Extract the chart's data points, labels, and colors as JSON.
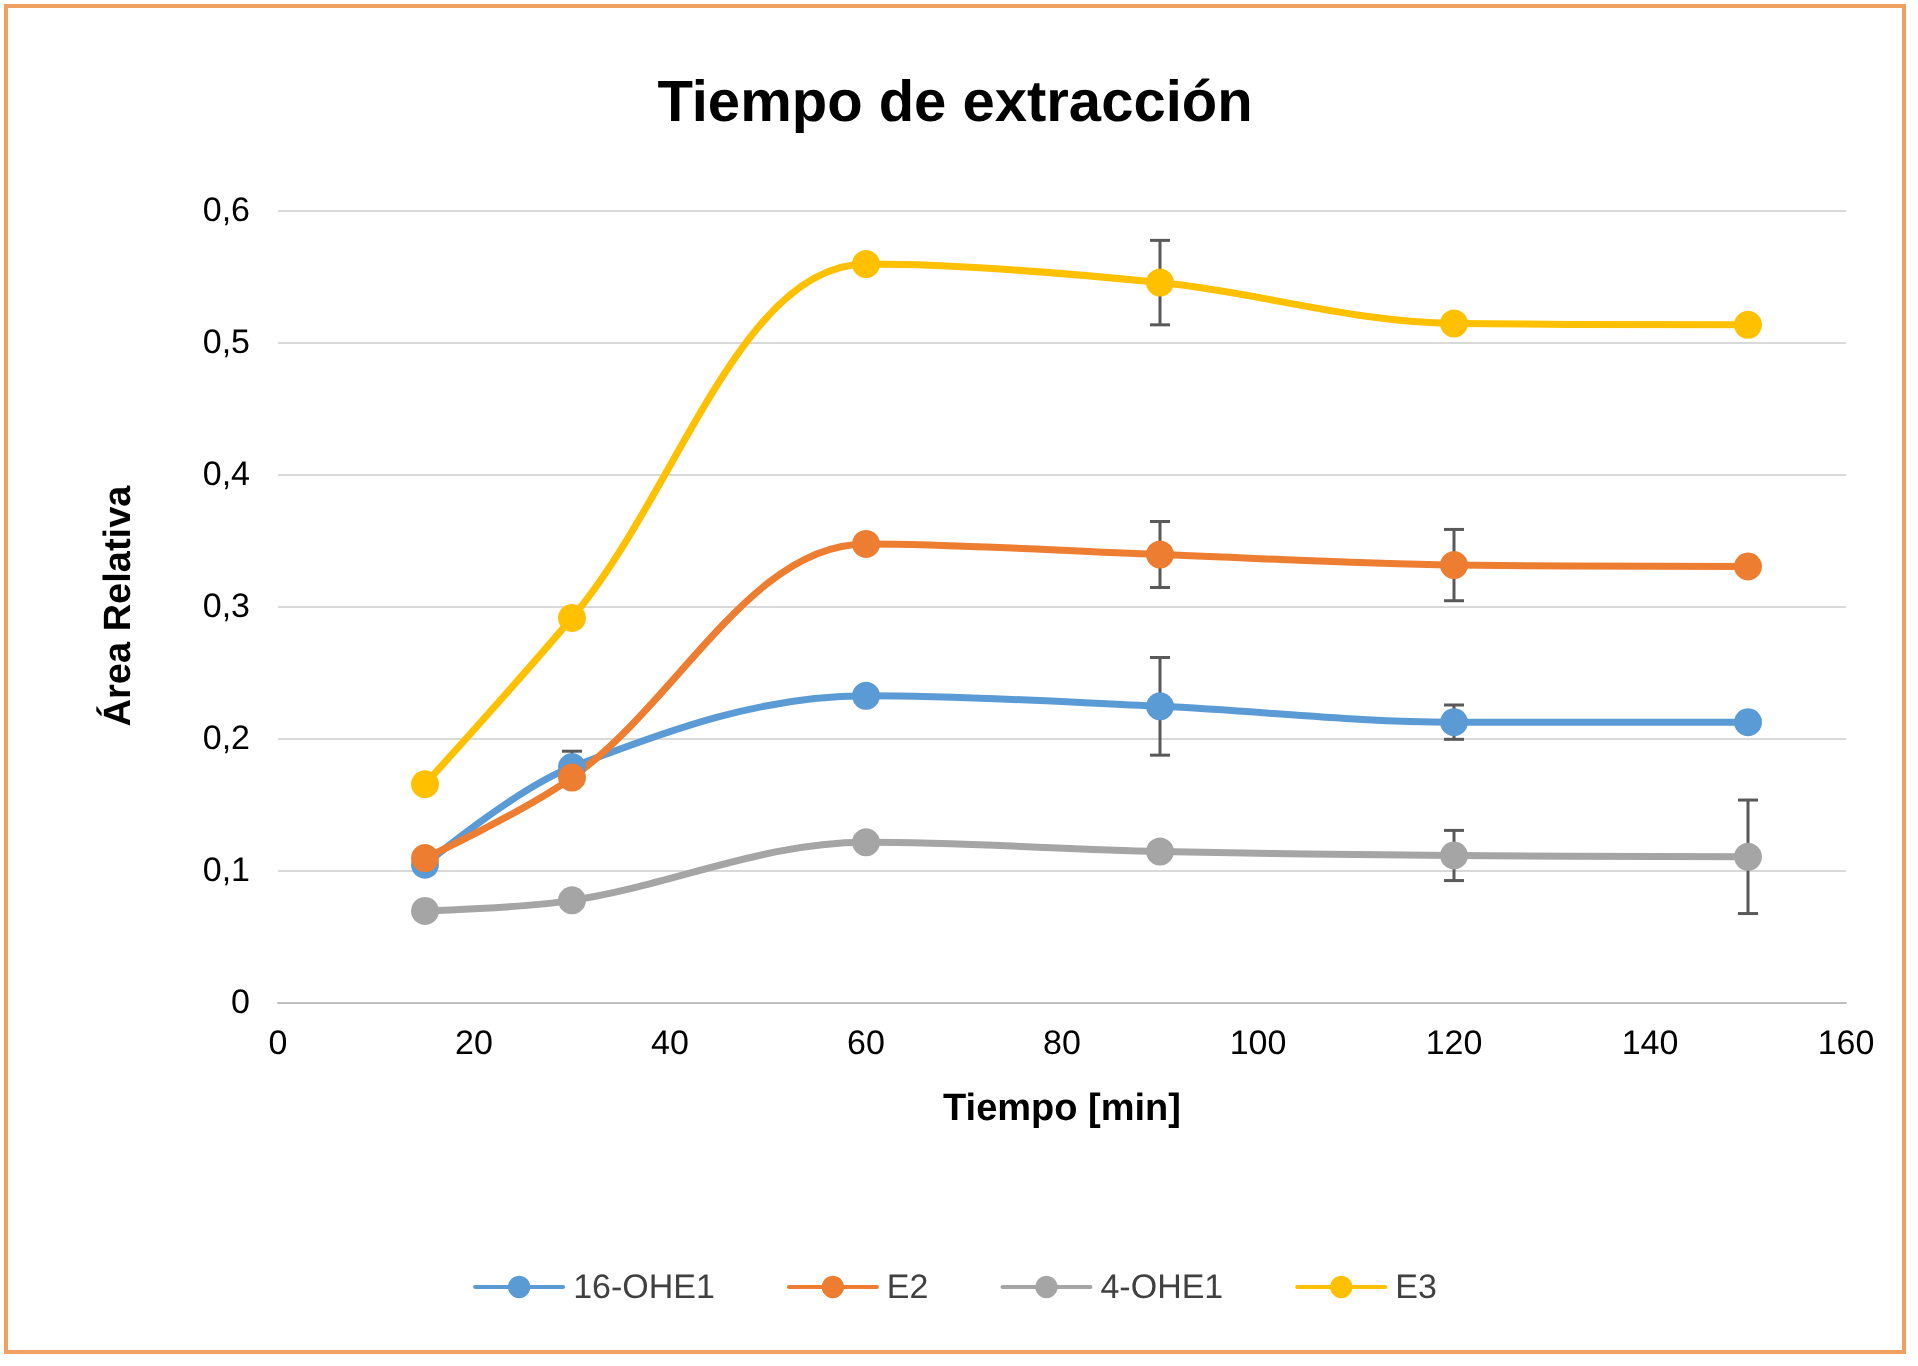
{
  "chart_data": {
    "type": "line",
    "title": "Tiempo de extracción",
    "xlabel": "Tiempo [min]",
    "ylabel": "Área Relativa",
    "x": [
      15,
      30,
      60,
      90,
      120,
      150
    ],
    "series": [
      {
        "name": "16-OHE1",
        "color": "#5b9bd5",
        "values": [
          0.104,
          0.178,
          0.232,
          0.224,
          0.212,
          0.212
        ],
        "errors": [
          null,
          0.012,
          null,
          0.037,
          0.013,
          null
        ]
      },
      {
        "name": "E2",
        "color": "#ed7d31",
        "values": [
          0.109,
          0.17,
          0.347,
          0.339,
          0.331,
          0.33
        ],
        "errors": [
          null,
          null,
          null,
          0.025,
          0.027,
          null
        ]
      },
      {
        "name": "4-OHE1",
        "color": "#a5a5a5",
        "values": [
          0.069,
          0.077,
          0.121,
          0.114,
          0.111,
          0.11
        ],
        "errors": [
          null,
          null,
          null,
          null,
          0.019,
          0.043
        ]
      },
      {
        "name": "E3",
        "color": "#ffc000",
        "values": [
          0.165,
          0.291,
          0.559,
          0.545,
          0.514,
          0.513
        ],
        "errors": [
          null,
          null,
          null,
          0.032,
          null,
          null
        ]
      }
    ],
    "xlim": [
      0,
      160
    ],
    "xticks": [
      0,
      20,
      40,
      60,
      80,
      100,
      120,
      140,
      160
    ],
    "ylim": [
      0,
      0.6
    ],
    "yticks": [
      0,
      {
        "value": 0.1,
        "label": "0,1"
      },
      {
        "value": 0.2,
        "label": "0,2"
      },
      {
        "value": 0.3,
        "label": "0,3"
      },
      {
        "value": 0.4,
        "label": "0,4"
      },
      {
        "value": 0.5,
        "label": "0,5"
      },
      {
        "value": 0.6,
        "label": "0,6"
      }
    ],
    "grid": "y",
    "legend": "bottom",
    "marker": "circle",
    "line_style": "solid"
  }
}
